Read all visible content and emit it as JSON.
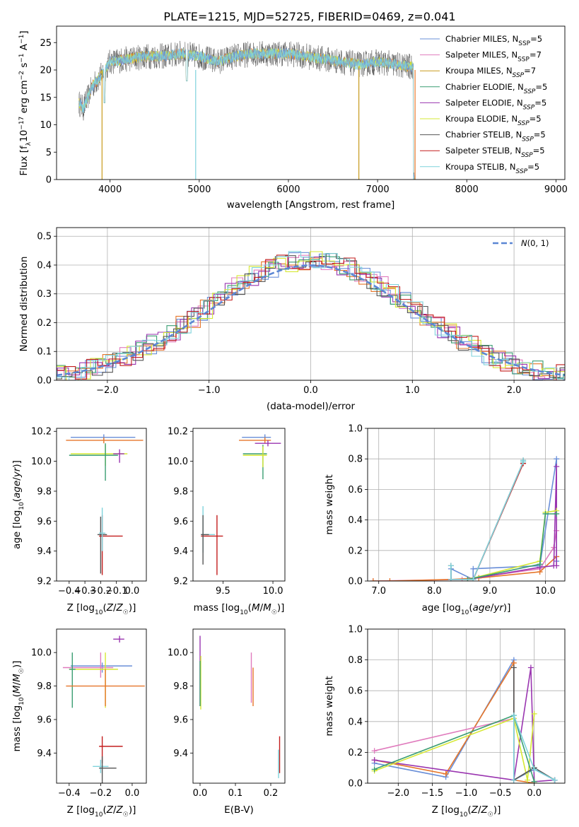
{
  "figure_title": "PLATE=1215, MJD=52725, FIBERID=0469, z=0.041",
  "colors": {
    "Chabrier MILES": "#6a8fd8",
    "Salpeter MILES": "#e07bbd",
    "Kroupa MILES": "#c89a1c",
    "Chabrier ELODIE": "#3a9e72",
    "Salpeter ELODIE": "#9a35b0",
    "Kroupa ELODIE": "#d6e834",
    "Chabrier STELIB": "#555555",
    "Salpeter STELIB": "#c31d1d",
    "Kroupa STELIB": "#7fd3dc",
    "orange": "#e6762a",
    "normal": "#5b86d4"
  },
  "chart_data": [
    {
      "id": "spectrum",
      "type": "line",
      "title": "PLATE=1215, MJD=52725, FIBERID=0469, z=0.041",
      "xlabel": "wavelength [Angstrom, rest frame]",
      "ylabel": "Flux [f_λ10^-17 erg cm^-2 s^-1 A^-1]",
      "xlim": [
        3400,
        9100
      ],
      "ylim": [
        0,
        28
      ],
      "xticks": [
        4000,
        5000,
        6000,
        7000,
        8000,
        9000
      ],
      "yticks": [
        0,
        5,
        10,
        15,
        20,
        25
      ],
      "grid": false,
      "legend_position": "top-right",
      "legend": [
        "Chabrier MILES, N_SSP=5",
        "Salpeter MILES, N_SSP=7",
        "Kroupa MILES, N_SSP=7",
        "Chabrier ELODIE, N_SSP=5",
        "Salpeter ELODIE, N_SSP=5",
        "Kroupa ELODIE, N_SSP=5",
        "Chabrier STELIB, N_SSP=5",
        "Salpeter STELIB, N_SSP=5",
        "Kroupa STELIB, N_SSP=5"
      ],
      "continuum": [
        [
          3650,
          14
        ],
        [
          3700,
          13
        ],
        [
          3800,
          17
        ],
        [
          3900,
          19
        ],
        [
          4000,
          21.5
        ],
        [
          4200,
          22
        ],
        [
          4400,
          22.5
        ],
        [
          4600,
          22.5
        ],
        [
          4800,
          23
        ],
        [
          5000,
          22.5
        ],
        [
          5200,
          21.5
        ],
        [
          5400,
          22.5
        ],
        [
          5600,
          23
        ],
        [
          5800,
          23
        ],
        [
          6000,
          23
        ],
        [
          6200,
          22.5
        ],
        [
          6400,
          22
        ],
        [
          6600,
          21.5
        ],
        [
          6800,
          21
        ],
        [
          7000,
          21.5
        ],
        [
          7200,
          21
        ],
        [
          7400,
          20.5
        ]
      ]
    },
    {
      "id": "residuals",
      "type": "histogram",
      "xlabel": "(data-model)/error",
      "ylabel": "Normed distribution",
      "xlim": [
        -2.5,
        2.5
      ],
      "ylim": [
        0,
        0.53
      ],
      "xticks": [
        -2,
        -1,
        0,
        1,
        2
      ],
      "yticks": [
        0,
        0.1,
        0.2,
        0.3,
        0.4,
        0.5
      ],
      "grid": true,
      "legend_position": "top-right",
      "legend": [
        "N(0,1)"
      ]
    },
    {
      "id": "age_vs_Z",
      "type": "errorbar",
      "xlabel": "Z [log10(Z/Z☉)]",
      "ylabel": "age [log10(age/yr)]",
      "xlim": [
        -0.48,
        0.09
      ],
      "ylim": [
        9.2,
        10.22
      ],
      "xticks": [
        -0.4,
        -0.3,
        -0.2,
        -0.1,
        0.0
      ],
      "yticks": [
        9.2,
        9.4,
        9.6,
        9.8,
        10.0,
        10.2
      ],
      "grid": false,
      "points": [
        {
          "x": -0.18,
          "y": 10.16,
          "xerr": [
            0.21,
            0.2
          ],
          "yerr": [
            0.02,
            0.02
          ],
          "c": "Chabrier MILES"
        },
        {
          "x": -0.18,
          "y": 10.14,
          "xerr": [
            0.24,
            0.25
          ],
          "yerr": [
            0.02,
            0.02
          ],
          "c": "orange"
        },
        {
          "x": -0.17,
          "y": 10.05,
          "xerr": [
            0.22,
            0.14
          ],
          "yerr": [
            0.08,
            0.06
          ],
          "c": "Kroupa ELODIE"
        },
        {
          "x": -0.17,
          "y": 10.04,
          "xerr": [
            0.23,
            0.08
          ],
          "yerr": [
            0.17,
            0.08
          ],
          "c": "Chabrier ELODIE"
        },
        {
          "x": -0.08,
          "y": 10.05,
          "xerr": [
            0.04,
            0.03
          ],
          "yerr": [
            0.06,
            0.03
          ],
          "c": "Salpeter ELODIE"
        },
        {
          "x": -0.2,
          "y": 9.51,
          "xerr": [
            0.02,
            0.04
          ],
          "yerr": [
            0.26,
            0.12
          ],
          "c": "Chabrier STELIB"
        },
        {
          "x": -0.19,
          "y": 9.5,
          "xerr": [
            0.02,
            0.13
          ],
          "yerr": [
            0.26,
            0.14
          ],
          "c": "Salpeter STELIB"
        },
        {
          "x": -0.19,
          "y": 9.52,
          "xerr": [
            0.02,
            0.02
          ],
          "yerr": [
            0.12,
            0.17
          ],
          "c": "Kroupa STELIB"
        }
      ]
    },
    {
      "id": "age_vs_mass",
      "type": "errorbar",
      "xlabel": "mass [log10(M/M☉)]",
      "ylabel": "",
      "xlim": [
        9.2,
        10.12
      ],
      "ylim": [
        9.2,
        10.22
      ],
      "xticks": [
        9.5,
        10.0
      ],
      "yticks": [
        9.2,
        9.4,
        9.6,
        9.8,
        10.0,
        10.2
      ],
      "grid": false,
      "points": [
        {
          "x": 9.92,
          "y": 10.16,
          "xerr": [
            0.23,
            0.06
          ],
          "yerr": [
            0.02,
            0.02
          ],
          "c": "Chabrier MILES"
        },
        {
          "x": 9.92,
          "y": 10.14,
          "xerr": [
            0.26,
            0.06
          ],
          "yerr": [
            0.02,
            0.02
          ],
          "c": "orange"
        },
        {
          "x": 9.95,
          "y": 10.12,
          "xerr": [
            0.13,
            0.13
          ],
          "yerr": [
            0.02,
            0.02
          ],
          "c": "Salpeter ELODIE"
        },
        {
          "x": 9.9,
          "y": 10.05,
          "xerr": [
            0.2,
            0.04
          ],
          "yerr": [
            0.17,
            0.06
          ],
          "c": "Chabrier ELODIE"
        },
        {
          "x": 9.9,
          "y": 10.04,
          "xerr": [
            0.2,
            0.04
          ],
          "yerr": [
            0.08,
            0.06
          ],
          "c": "Kroupa ELODIE"
        },
        {
          "x": 9.3,
          "y": 9.51,
          "xerr": [
            0.02,
            0.12
          ],
          "yerr": [
            0.12,
            0.19
          ],
          "c": "Kroupa STELIB"
        },
        {
          "x": 9.44,
          "y": 9.5,
          "xerr": [
            0.16,
            0.06
          ],
          "yerr": [
            0.26,
            0.14
          ],
          "c": "Salpeter STELIB"
        },
        {
          "x": 9.3,
          "y": 9.51,
          "xerr": [
            0.02,
            0.06
          ],
          "yerr": [
            0.2,
            0.13
          ],
          "c": "Chabrier STELIB"
        }
      ]
    },
    {
      "id": "weight_vs_age",
      "type": "line",
      "xlabel": "age [log10(age/yr)]",
      "ylabel": "mass weight",
      "xlim": [
        6.8,
        10.35
      ],
      "ylim": [
        0,
        1.0
      ],
      "xticks": [
        7,
        8,
        9,
        10
      ],
      "yticks": [
        0.0,
        0.2,
        0.4,
        0.6,
        0.8,
        1.0
      ],
      "grid": true,
      "series": [
        {
          "c": "Chabrier MILES",
          "x": [
            8.3,
            8.3,
            8.7,
            8.7,
            9.9,
            10.2,
            10.2
          ],
          "y": [
            0.01,
            0.08,
            0.01,
            0.08,
            0.1,
            0.8,
            0.13
          ]
        },
        {
          "c": "Salpeter MILES",
          "x": [
            6.9,
            8.5,
            9.9,
            10.15,
            10.2
          ],
          "y": [
            0.0,
            0.01,
            0.08,
            0.22,
            0.33
          ]
        },
        {
          "c": "orange",
          "x": [
            6.9,
            7.2,
            8.3,
            8.8,
            9.9,
            10.2
          ],
          "y": [
            0.0,
            0.0,
            0.01,
            0.02,
            0.06,
            0.16
          ]
        },
        {
          "c": "Salpeter ELODIE",
          "x": [
            8.6,
            9.9,
            10.15,
            10.2,
            10.2
          ],
          "y": [
            0.01,
            0.09,
            0.1,
            0.75,
            0.1
          ]
        },
        {
          "c": "Kroupa ELODIE",
          "x": [
            8.6,
            9.9,
            10.0,
            10.2
          ],
          "y": [
            0.01,
            0.13,
            0.45,
            0.46
          ]
        },
        {
          "c": "Chabrier ELODIE",
          "x": [
            8.6,
            9.9,
            10.0,
            10.2
          ],
          "y": [
            0.01,
            0.11,
            0.44,
            0.44
          ]
        },
        {
          "c": "Chabrier STELIB",
          "x": [
            8.3,
            8.3,
            8.7,
            9.6,
            9.6
          ],
          "y": [
            0.1,
            0.01,
            0.01,
            0.78,
            0.79
          ]
        },
        {
          "c": "Salpeter STELIB",
          "x": [
            8.3,
            8.7,
            9.6
          ],
          "y": [
            0.01,
            0.01,
            0.77
          ]
        },
        {
          "c": "Kroupa STELIB",
          "x": [
            8.3,
            8.3,
            8.7,
            9.6,
            9.6
          ],
          "y": [
            0.1,
            0.01,
            0.01,
            0.78,
            0.79
          ]
        }
      ]
    },
    {
      "id": "mass_vs_Z",
      "type": "errorbar",
      "xlabel": "Z [log10(Z/Z☉)]",
      "ylabel": "mass [log10(M/M☉)]",
      "xlim": [
        -0.48,
        0.09
      ],
      "ylim": [
        9.22,
        10.14
      ],
      "xticks": [
        -0.4,
        -0.2,
        0.0
      ],
      "yticks": [
        9.4,
        9.6,
        9.8,
        10.0
      ],
      "grid": false,
      "points": [
        {
          "x": -0.08,
          "y": 10.08,
          "xerr": [
            0.04,
            0.03
          ],
          "yerr": [
            0.02,
            0.02
          ],
          "c": "Salpeter ELODIE"
        },
        {
          "x": -0.19,
          "y": 9.92,
          "xerr": [
            0.2,
            0.19
          ],
          "yerr": [
            0.04,
            0.02
          ],
          "c": "Chabrier MILES"
        },
        {
          "x": -0.2,
          "y": 9.91,
          "xerr": [
            0.24,
            0.08
          ],
          "yerr": [
            0.06,
            0.09
          ],
          "c": "Salpeter MILES"
        },
        {
          "x": -0.17,
          "y": 9.9,
          "xerr": [
            0.23,
            0.08
          ],
          "yerr": [
            0.23,
            0.1
          ],
          "c": "Kroupa ELODIE"
        },
        {
          "x": -0.38,
          "y": 9.9,
          "xerr": [
            0.02,
            0.02
          ],
          "yerr": [
            0.23,
            0.1
          ],
          "c": "Chabrier ELODIE"
        },
        {
          "x": -0.17,
          "y": 9.8,
          "xerr": [
            0.25,
            0.25
          ],
          "yerr": [
            0.12,
            0.1
          ],
          "c": "orange"
        },
        {
          "x": -0.19,
          "y": 9.44,
          "xerr": [
            0.02,
            0.13
          ],
          "yerr": [
            0.1,
            0.06
          ],
          "c": "Salpeter STELIB"
        },
        {
          "x": -0.2,
          "y": 9.32,
          "xerr": [
            0.05,
            0.05
          ],
          "yerr": [
            0.04,
            0.04
          ],
          "c": "Kroupa STELIB"
        },
        {
          "x": -0.19,
          "y": 9.31,
          "xerr": [
            0.02,
            0.09
          ],
          "yerr": [
            0.11,
            0.07
          ],
          "c": "Chabrier STELIB"
        }
      ]
    },
    {
      "id": "mass_vs_ebv",
      "type": "errorbar",
      "xlabel": "E(B-V)",
      "ylabel": "",
      "xlim": [
        -0.02,
        0.24
      ],
      "ylim": [
        9.22,
        10.14
      ],
      "xticks": [
        0.0,
        0.1,
        0.2
      ],
      "yticks": [
        9.4,
        9.6,
        9.8,
        10.0
      ],
      "grid": false,
      "points": [
        {
          "x": 0.0,
          "y": 9.9,
          "xerr": [
            0,
            0
          ],
          "yerr": [
            0.22,
            0.2
          ],
          "c": "Salpeter ELODIE"
        },
        {
          "x": 0.002,
          "y": 9.86,
          "xerr": [
            0,
            0
          ],
          "yerr": [
            0.2,
            0.12
          ],
          "c": "Kroupa ELODIE"
        },
        {
          "x": 0.0,
          "y": 9.8,
          "xerr": [
            0,
            0
          ],
          "yerr": [
            0.12,
            0.15
          ],
          "c": "Chabrier ELODIE"
        },
        {
          "x": 0.145,
          "y": 9.9,
          "xerr": [
            0,
            0
          ],
          "yerr": [
            0.2,
            0.1
          ],
          "c": "Salpeter MILES"
        },
        {
          "x": 0.15,
          "y": 9.8,
          "xerr": [
            0,
            0
          ],
          "yerr": [
            0.12,
            0.11
          ],
          "c": "orange"
        },
        {
          "x": 0.225,
          "y": 9.38,
          "xerr": [
            0,
            0
          ],
          "yerr": [
            0.1,
            0.12
          ],
          "c": "Salpeter STELIB"
        },
        {
          "x": 0.222,
          "y": 9.33,
          "xerr": [
            0,
            0
          ],
          "yerr": [
            0.08,
            0.09
          ],
          "c": "Kroupa STELIB"
        }
      ]
    },
    {
      "id": "weight_vs_Z",
      "type": "line",
      "xlabel": "Z [log10(Z/Z☉)]",
      "ylabel": "mass weight",
      "xlim": [
        -2.45,
        0.45
      ],
      "ylim": [
        0,
        1.0
      ],
      "xticks": [
        -2.0,
        -1.5,
        -1.0,
        -0.5,
        0.0
      ],
      "yticks": [
        0.0,
        0.2,
        0.4,
        0.6,
        0.8,
        1.0
      ],
      "grid": true,
      "series": [
        {
          "c": "Chabrier MILES",
          "x": [
            -2.35,
            -1.3,
            -0.3,
            -0.3,
            0.0,
            0.3
          ],
          "y": [
            0.13,
            0.04,
            0.8,
            0.02,
            0.09,
            0.02
          ]
        },
        {
          "c": "orange",
          "x": [
            -2.35,
            -1.3,
            -0.3,
            -0.3,
            0.0
          ],
          "y": [
            0.15,
            0.06,
            0.78,
            0.02,
            0.0
          ]
        },
        {
          "c": "Salpeter MILES",
          "x": [
            -2.35,
            -0.3,
            -0.3
          ],
          "y": [
            0.21,
            0.42,
            0.02
          ]
        },
        {
          "c": "Salpeter ELODIE",
          "x": [
            -2.35,
            -0.3,
            -0.05,
            0.0,
            0.3
          ],
          "y": [
            0.15,
            0.02,
            0.75,
            0.01,
            0.02
          ]
        },
        {
          "c": "Kroupa ELODIE",
          "x": [
            -2.35,
            -0.3,
            -0.1,
            0.0
          ],
          "y": [
            0.08,
            0.42,
            0.02,
            0.45
          ]
        },
        {
          "c": "Chabrier ELODIE",
          "x": [
            -2.35,
            -0.3,
            0.0
          ],
          "y": [
            0.09,
            0.44,
            0.01
          ]
        },
        {
          "c": "Chabrier STELIB",
          "x": [
            -0.3,
            -0.3,
            0.0,
            0.3
          ],
          "y": [
            0.75,
            0.02,
            0.1,
            0.02
          ]
        },
        {
          "c": "Kroupa STELIB",
          "x": [
            -0.3,
            -0.3,
            0.0,
            0.3
          ],
          "y": [
            0.02,
            0.44,
            0.09,
            0.02
          ]
        }
      ]
    }
  ]
}
